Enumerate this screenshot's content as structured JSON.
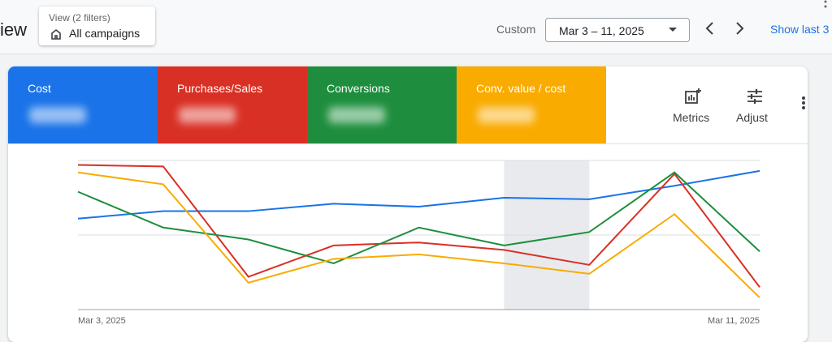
{
  "header": {
    "page_title": "iew",
    "view_label": "View (2 filters)",
    "view_value": "All campaigns",
    "range_type": "Custom",
    "date_range": "Mar 3 – 11, 2025",
    "show_last": "Show last 3"
  },
  "toolbar": {
    "metrics": "Metrics",
    "adjust": "Adjust"
  },
  "chart_data": {
    "type": "line",
    "categories": [
      "Mar 3, 2025",
      null,
      null,
      null,
      null,
      null,
      null,
      null,
      "Mar 11, 2025"
    ],
    "ylim": [
      0,
      100
    ],
    "yticks": [
      0,
      50,
      100
    ],
    "grid": true,
    "highlight_range": [
      5,
      6
    ],
    "series": [
      {
        "name": "Cost",
        "color": "#1a73e8",
        "values": [
          61,
          66,
          66,
          71,
          69,
          75,
          74,
          83,
          93
        ]
      },
      {
        "name": "Purchases/Sales",
        "color": "#d93025",
        "values": [
          97,
          96,
          22,
          43,
          45,
          40,
          30,
          91,
          15
        ]
      },
      {
        "name": "Conversions",
        "color": "#1e8e3e",
        "values": [
          79,
          55,
          47,
          31,
          55,
          43,
          52,
          92,
          39
        ]
      },
      {
        "name": "Conv. value / cost",
        "color": "#f9ab00",
        "values": [
          92,
          84,
          18,
          34,
          37,
          31,
          24,
          64,
          8
        ]
      }
    ]
  }
}
